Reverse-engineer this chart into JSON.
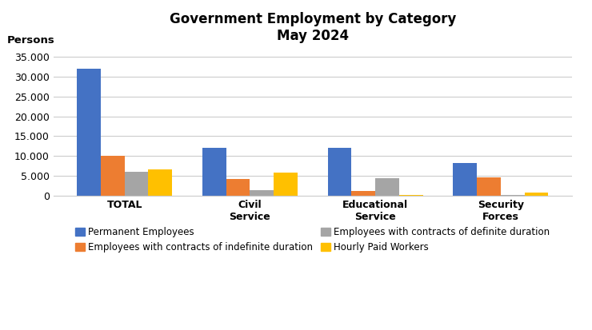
{
  "title": "Government Employment by Category\nMay 2024",
  "ylabel": "Persons",
  "categories": [
    "TOTAL",
    "Civil\nService",
    "Educational\nService",
    "Security\nForces"
  ],
  "series": {
    "Permanent Employees": [
      32000,
      12000,
      12000,
      8200
    ],
    "Employees with contracts of indefinite duration": [
      10100,
      4200,
      1200,
      4600
    ],
    "Employees with contracts of definite duration": [
      6000,
      1400,
      4500,
      300
    ],
    "Hourly Paid Workers": [
      6700,
      5800,
      200,
      900
    ]
  },
  "colors": {
    "Permanent Employees": "#4472C4",
    "Employees with contracts of indefinite duration": "#ED7D31",
    "Employees with contracts of definite duration": "#A5A5A5",
    "Hourly Paid Workers": "#FFC000"
  },
  "ylim": [
    0,
    37000
  ],
  "yticks": [
    0,
    5000,
    10000,
    15000,
    20000,
    25000,
    30000,
    35000
  ],
  "bar_width": 0.19,
  "background_color": "#ffffff",
  "title_fontsize": 12,
  "ylabel_fontsize": 9.5,
  "tick_fontsize": 9,
  "legend_fontsize": 8.5
}
